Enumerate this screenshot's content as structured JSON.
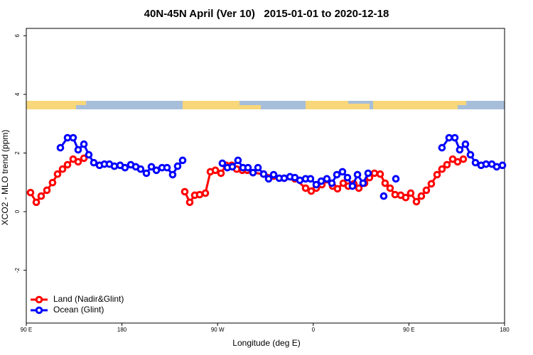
{
  "chart_data": {
    "type": "line",
    "title": "40N-45N April (Ver 10)   2015-01-01 to 2020-12-18",
    "x_label": "Longitude (deg E)",
    "y_label": "XCO2 - MLO trend (ppm)",
    "xlim": [
      90,
      540
    ],
    "ylim": [
      -3.8,
      6.25
    ],
    "xticks": [
      {
        "value": 90,
        "label": "90 E"
      },
      {
        "value": 180,
        "label": "180"
      },
      {
        "value": 270,
        "label": "90 W"
      },
      {
        "value": 360,
        "label": "0"
      },
      {
        "value": 450,
        "label": "90 E"
      },
      {
        "value": 540,
        "label": "180"
      }
    ],
    "yticks": [
      -2,
      0,
      2,
      4,
      6
    ],
    "legend": "bottom-left",
    "series": [
      {
        "name": "Land (Nadir&Glint)",
        "color": "#ff0000",
        "x": [
          94.0,
          99.4,
          104.0,
          109.4,
          114.7,
          119.4,
          124.1,
          128.8,
          134.1,
          138.8,
          144.2,
          190,
          239.1,
          243.8,
          248.5,
          253.1,
          258.5,
          263.2,
          267.9,
          273.2,
          277.9,
          283.3,
          288.0,
          293.3,
          298.0,
          303.3,
          313.3,
          322.7,
          332.7,
          342.7,
          352.8,
          358.1,
          362.8,
          368.1,
          372.8,
          378.2,
          382.8,
          388.2,
          392.9,
          398.2,
          402.9,
          408.3,
          412.9,
          417.6,
          423.0,
          427.6,
          432.3,
          437.0,
          442.3,
          447.0,
          451.7,
          457.1,
          461.7,
          466.4,
          471.1,
          476.5,
          481.1,
          485.8,
          491.2,
          495.8,
          501.2
        ],
        "values": [
          0.65,
          0.32,
          0.53,
          0.73,
          0.99,
          1.28,
          1.45,
          1.6,
          1.79,
          1.7,
          1.82,
          null,
          0.68,
          0.32,
          0.56,
          0.58,
          0.63,
          1.36,
          1.41,
          1.31,
          1.58,
          1.58,
          1.45,
          1.41,
          1.41,
          1.33,
          1.28,
          1.21,
          1.14,
          1.12,
          0.8,
          0.7,
          0.8,
          0.92,
          1.09,
          0.87,
          0.78,
          0.97,
          0.87,
          0.95,
          0.8,
          0.97,
          1.16,
          1.31,
          1.28,
          0.97,
          0.8,
          0.58,
          0.56,
          0.48,
          0.63,
          0.34,
          0.53,
          0.73,
          0.95,
          1.26,
          1.45,
          1.6,
          1.79,
          1.7,
          1.79
        ]
      },
      {
        "name": "Ocean (Glint)",
        "color": "#0000ff",
        "x": [
          122.1,
          128.8,
          134.1,
          138.8,
          144.2,
          148.8,
          153.5,
          158.9,
          163.5,
          168.2,
          172.9,
          178.3,
          182.9,
          188.3,
          193.0,
          197.6,
          203.0,
          207.7,
          212.4,
          217.7,
          222.4,
          227.7,
          232.4,
          237.1,
          260,
          274.5,
          279.2,
          283.9,
          289.2,
          293.9,
          298.6,
          303.3,
          308.0,
          313.3,
          318.0,
          322.7,
          328.0,
          332.7,
          338.1,
          342.7,
          347.4,
          352.8,
          357.4,
          362.8,
          367.5,
          372.8,
          377.5,
          382.2,
          387.5,
          392.2,
          396.9,
          401.6,
          406.9,
          411.6,
          415,
          426.3,
          430,
          437.7,
          470,
          481.1,
          487.8,
          493.2,
          497.8,
          503.2,
          507.9,
          512.6,
          517.9,
          522.6,
          528.0,
          532.6,
          538.0
        ],
        "values": [
          2.18,
          2.52,
          2.52,
          2.11,
          2.3,
          1.94,
          1.67,
          1.58,
          1.62,
          1.62,
          1.55,
          1.58,
          1.5,
          1.6,
          1.53,
          1.45,
          1.31,
          1.53,
          1.41,
          1.5,
          1.5,
          1.26,
          1.55,
          1.75,
          null,
          1.65,
          1.5,
          1.53,
          1.75,
          1.5,
          1.5,
          1.33,
          1.5,
          1.28,
          1.12,
          1.26,
          1.14,
          1.14,
          1.19,
          1.16,
          1.07,
          1.12,
          1.12,
          0.92,
          1.04,
          1.12,
          0.97,
          1.26,
          1.36,
          1.16,
          0.87,
          1.26,
          0.97,
          1.31,
          null,
          0.53,
          null,
          1.12,
          null,
          2.18,
          2.52,
          2.52,
          2.11,
          2.3,
          1.94,
          1.67,
          1.58,
          1.62,
          1.62,
          1.53,
          1.58
        ]
      }
    ]
  }
}
